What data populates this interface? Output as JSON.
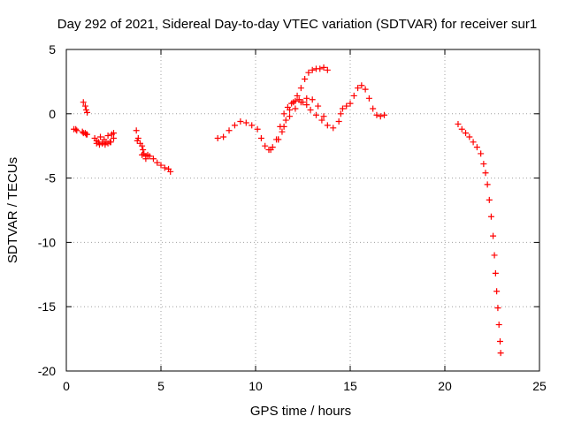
{
  "chart_data": {
    "type": "scatter",
    "title": "Day 292 of 2021, Sidereal Day-to-day VTEC variation (SDTVAR) for receiver sur1",
    "xlabel": "GPS time / hours",
    "ylabel": "SDTVAR / TECUs",
    "xlim": [
      0,
      25
    ],
    "ylim": [
      -20,
      5
    ],
    "xticks": [
      0,
      5,
      10,
      15,
      20,
      25
    ],
    "xtick_labels": [
      "0",
      "5",
      "10",
      "15",
      "20",
      "25"
    ],
    "yticks": [
      5,
      0,
      -5,
      -10,
      -15,
      -20
    ],
    "ytick_labels": [
      "5",
      "0",
      "-5",
      "-10",
      "-15",
      "-20"
    ],
    "grid": true,
    "marker": "plus",
    "series": [
      {
        "name": "SDTVAR",
        "color": "#ff0000",
        "x": [
          0.4,
          0.5,
          0.55,
          0.9,
          1.0,
          1.05,
          1.1,
          0.85,
          0.9,
          1.0,
          1.05,
          1.1,
          1.5,
          1.6,
          1.7,
          1.8,
          1.9,
          2.0,
          2.1,
          2.2,
          2.3,
          2.4,
          2.5,
          1.6,
          1.75,
          1.9,
          2.05,
          2.2,
          2.35,
          2.5,
          3.7,
          3.8,
          3.9,
          4.0,
          4.05,
          4.1,
          4.2,
          4.3,
          4.4,
          4.6,
          4.8,
          5.0,
          5.2,
          5.4,
          5.5,
          3.75,
          4.0,
          4.2,
          8.0,
          8.3,
          8.6,
          8.9,
          9.2,
          9.5,
          9.8,
          10.1,
          10.3,
          10.5,
          10.7,
          10.9,
          11.1,
          11.3,
          11.5,
          11.7,
          11.9,
          12.1,
          12.3,
          12.5,
          12.7,
          12.9,
          13.2,
          13.5,
          13.8,
          14.1,
          11.2,
          11.4,
          11.6,
          11.8,
          12.0,
          12.2,
          12.4,
          12.6,
          12.8,
          13.0,
          13.2,
          13.4,
          13.6,
          13.8,
          10.8,
          11.2,
          11.5,
          11.8,
          12.1,
          12.4,
          12.7,
          13.0,
          13.3,
          13.6,
          14.4,
          14.5,
          14.6,
          14.8,
          15.0,
          15.2,
          15.4,
          15.6,
          15.8,
          16.0,
          16.2,
          16.4,
          16.6,
          16.8,
          20.7,
          20.9,
          21.1,
          21.3,
          21.5,
          21.7,
          21.9,
          22.05,
          22.15,
          22.25,
          22.35,
          22.45,
          22.55,
          22.62,
          22.68,
          22.74,
          22.8,
          22.86,
          22.92,
          22.95
        ],
        "y": [
          -1.2,
          -1.2,
          -1.3,
          0.9,
          0.6,
          0.3,
          0.1,
          -1.4,
          -1.5,
          -1.5,
          -1.6,
          -1.6,
          -1.9,
          -2.1,
          -2.2,
          -1.8,
          -2.3,
          -2.0,
          -2.2,
          -1.7,
          -2.2,
          -1.6,
          -1.5,
          -2.3,
          -2.4,
          -2.3,
          -2.4,
          -2.3,
          -2.2,
          -1.9,
          -1.3,
          -1.9,
          -2.3,
          -2.5,
          -2.8,
          -3.1,
          -3.3,
          -3.2,
          -3.3,
          -3.5,
          -3.8,
          -4.0,
          -4.2,
          -4.3,
          -4.5,
          -2.1,
          -3.2,
          -3.5,
          -1.9,
          -1.8,
          -1.3,
          -0.9,
          -0.6,
          -0.7,
          -0.9,
          -1.2,
          -1.9,
          -2.5,
          -2.8,
          -2.6,
          -2.0,
          -1.0,
          0.0,
          0.5,
          0.8,
          1.0,
          1.1,
          0.9,
          0.7,
          0.3,
          -0.1,
          -0.5,
          -0.9,
          -1.1,
          -2.0,
          -1.4,
          -0.5,
          0.3,
          0.9,
          1.4,
          2.0,
          2.7,
          3.2,
          3.4,
          3.5,
          3.5,
          3.6,
          3.4,
          -2.8,
          -2.0,
          -1.0,
          -0.2,
          0.4,
          0.9,
          1.2,
          1.1,
          0.6,
          -0.2,
          -0.6,
          0.0,
          0.4,
          0.6,
          0.8,
          1.4,
          2.0,
          2.2,
          1.9,
          1.2,
          0.4,
          -0.1,
          -0.2,
          -0.1,
          -0.8,
          -1.2,
          -1.5,
          -1.8,
          -2.2,
          -2.6,
          -3.1,
          -3.9,
          -4.6,
          -5.5,
          -6.7,
          -8.0,
          -9.5,
          -11.0,
          -12.4,
          -13.8,
          -15.1,
          -16.4,
          -17.7,
          -18.6
        ]
      }
    ]
  }
}
